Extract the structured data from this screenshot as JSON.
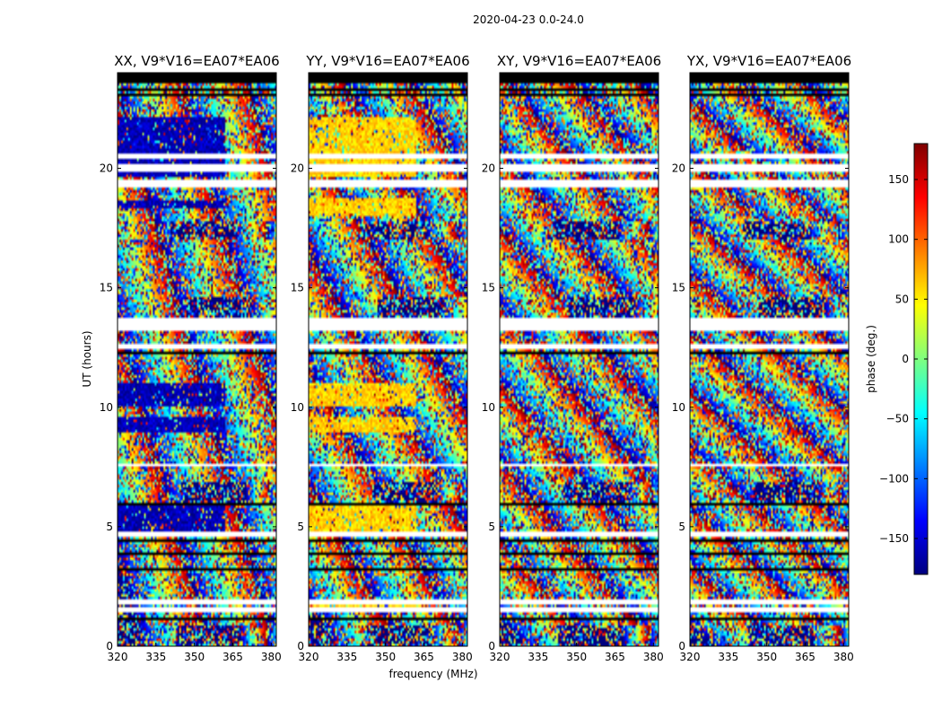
{
  "chart_data": {
    "type": "heatmap",
    "suptitle": "2020-04-23 0.0-24.0",
    "xlabel": "frequency (MHz)",
    "ylabel": "UT (hours)",
    "xlim": [
      320,
      382
    ],
    "ylim": [
      0,
      24
    ],
    "xticks": [
      "320",
      "335",
      "350",
      "365",
      "380"
    ],
    "xtick_values": [
      320,
      335,
      350,
      365,
      380
    ],
    "yticks": [
      "0",
      "5",
      "10",
      "15",
      "20"
    ],
    "ytick_values": [
      0,
      5,
      10,
      15,
      20
    ],
    "colormap": "jet",
    "colorbar": {
      "label": "phase (deg.)",
      "range": [
        -180,
        180
      ],
      "ticks": [
        "150",
        "100",
        "50",
        "0",
        "−50",
        "−100",
        "−150"
      ],
      "tick_values": [
        150,
        100,
        50,
        0,
        -50,
        -100,
        -150
      ],
      "stops": [
        "#00007f",
        "#0000ff",
        "#007fff",
        "#00ffff",
        "#7fff7f",
        "#ffff00",
        "#ff7f00",
        "#ff0000",
        "#7f0000"
      ]
    },
    "gap_color": "#ffffff",
    "flag_color": "#000000",
    "panels": [
      {
        "title": "XX, V9*V16=EA07*EA06",
        "dominant_phase": -160,
        "dominant_bands": [
          [
            4.6,
            5.9
          ],
          [
            10.0,
            11.0
          ],
          [
            18.3,
            18.7
          ],
          [
            19.6,
            22.2
          ],
          [
            9.0,
            9.6
          ]
        ],
        "dominant_max_freq": 362
      },
      {
        "title": "YY, V9*V16=EA07*EA06",
        "dominant_phase": 60,
        "dominant_bands": [
          [
            4.6,
            5.9
          ],
          [
            10.0,
            11.0
          ],
          [
            18.0,
            18.8
          ],
          [
            19.6,
            22.2
          ],
          [
            9.0,
            9.6
          ],
          [
            1.6,
            2.0
          ]
        ],
        "dominant_max_freq": 362
      },
      {
        "title": "XY, V9*V16=EA07*EA06",
        "dominant_phase": null,
        "dominant_bands": [],
        "dominant_max_freq": 320
      },
      {
        "title": "YX, V9*V16=EA07*EA06",
        "dominant_phase": null,
        "dominant_bands": [],
        "dominant_max_freq": 320
      }
    ],
    "white_gap_bands": [
      [
        1.42,
        1.62
      ],
      [
        1.78,
        1.92
      ],
      [
        4.58,
        4.75
      ],
      [
        7.55,
        7.65
      ],
      [
        12.45,
        12.62
      ],
      [
        13.2,
        13.8
      ],
      [
        16.1,
        16.2
      ],
      [
        19.2,
        19.5
      ],
      [
        19.9,
        20.2
      ],
      [
        20.45,
        20.6
      ]
    ],
    "flag_bands": [
      [
        1.05,
        1.2
      ],
      [
        3.2,
        3.3
      ],
      [
        3.82,
        3.92
      ],
      [
        4.35,
        4.42
      ],
      [
        5.88,
        5.96
      ],
      [
        6.85,
        6.92
      ],
      [
        12.25,
        12.32
      ],
      [
        11.3,
        11.37
      ],
      [
        13.83,
        13.9
      ],
      [
        23.0,
        23.08
      ],
      [
        23.25,
        23.35
      ],
      [
        23.55,
        24.0
      ]
    ],
    "phase_wrap_features": [
      {
        "t": 6.45,
        "f": 370,
        "slope": 40
      },
      {
        "t": 0.45,
        "f": 368,
        "slope": 35
      },
      {
        "t": 14.2,
        "f": 372,
        "slope": 25
      },
      {
        "t": 17.4,
        "f": 366,
        "slope": 30
      }
    ]
  }
}
